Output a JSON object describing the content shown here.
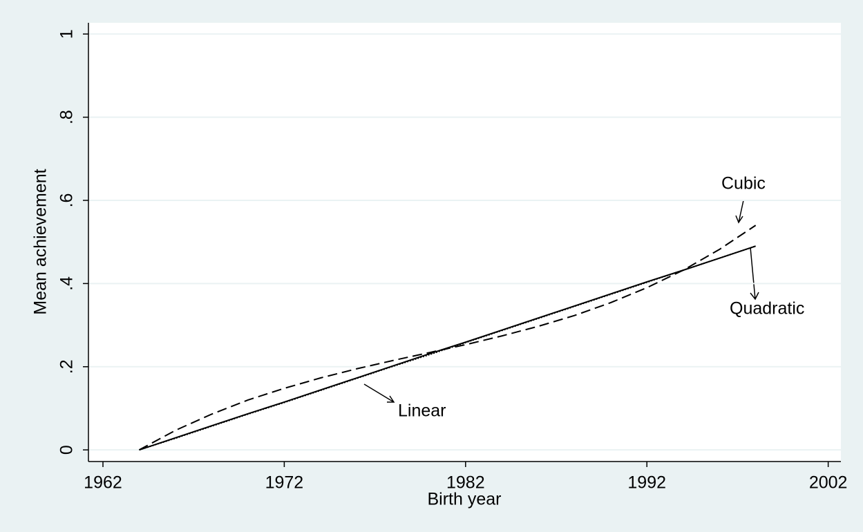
{
  "chart_data": {
    "type": "line",
    "x_label": "Birth year",
    "y_label": "Mean achievement",
    "xlim": [
      1961.2,
      2002.7
    ],
    "xticks": [
      1962,
      1972,
      1982,
      1992,
      2002
    ],
    "ylim": [
      -0.028,
      1.027
    ],
    "yticks": [
      0,
      {
        "value": 0.2,
        "label": ".2"
      },
      {
        "value": 0.4,
        "label": ".4"
      },
      {
        "value": 0.6,
        "label": ".6"
      },
      {
        "value": 0.8,
        "label": ".8"
      },
      1
    ],
    "grid": true,
    "series": [
      {
        "name": "Linear",
        "color": "#000000",
        "line_style": "solid",
        "x": [
          1964,
          1966,
          1968,
          1970,
          1972,
          1974,
          1976,
          1978,
          1980,
          1982,
          1984,
          1986,
          1988,
          1990,
          1992,
          1994,
          1996,
          1998
        ],
        "values": [
          0,
          0.029,
          0.058,
          0.087,
          0.115,
          0.144,
          0.173,
          0.202,
          0.231,
          0.259,
          0.288,
          0.317,
          0.346,
          0.375,
          0.404,
          0.432,
          0.461,
          0.49
        ]
      },
      {
        "name": "Quadratic",
        "color": "#000000",
        "line_style": "dotted",
        "x": [
          1964,
          1966,
          1968,
          1970,
          1972,
          1974,
          1976,
          1978,
          1980,
          1982,
          1984,
          1986,
          1988,
          1990,
          1992,
          1994,
          1996,
          1998
        ],
        "values": [
          0,
          0.028,
          0.057,
          0.086,
          0.114,
          0.143,
          0.172,
          0.201,
          0.229,
          0.258,
          0.287,
          0.316,
          0.345,
          0.374,
          0.403,
          0.432,
          0.461,
          0.49
        ]
      },
      {
        "name": "Cubic",
        "color": "#000000",
        "line_style": "dashed",
        "x": [
          1964,
          1966,
          1968,
          1970,
          1972,
          1974,
          1976,
          1978,
          1980,
          1982,
          1984,
          1986,
          1988,
          1990,
          1992,
          1994,
          1996,
          1998
        ],
        "values": [
          0,
          0.047,
          0.086,
          0.12,
          0.148,
          0.173,
          0.195,
          0.215,
          0.234,
          0.253,
          0.274,
          0.297,
          0.323,
          0.354,
          0.39,
          0.432,
          0.482,
          0.54
        ]
      }
    ]
  }
}
